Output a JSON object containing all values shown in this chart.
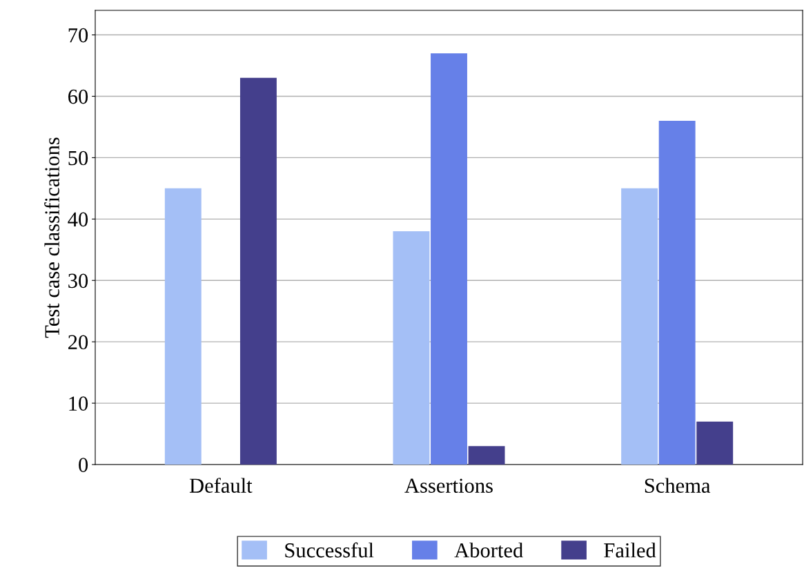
{
  "chart_data": {
    "type": "bar",
    "ylabel": "Test case classifications",
    "categories": [
      "Default",
      "Assertions",
      "Schema"
    ],
    "series": [
      {
        "name": "Successful",
        "color": "#a4bff6",
        "values": [
          45,
          38,
          45
        ]
      },
      {
        "name": "Aborted",
        "color": "#6680e8",
        "values": [
          0,
          67,
          56
        ]
      },
      {
        "name": "Failed",
        "color": "#443f8c",
        "values": [
          63,
          3,
          7
        ]
      }
    ],
    "ylim": [
      0,
      74
    ],
    "yticks": [
      0,
      10,
      20,
      30,
      40,
      50,
      60,
      70
    ],
    "grid": "y",
    "legend": "bottom"
  }
}
